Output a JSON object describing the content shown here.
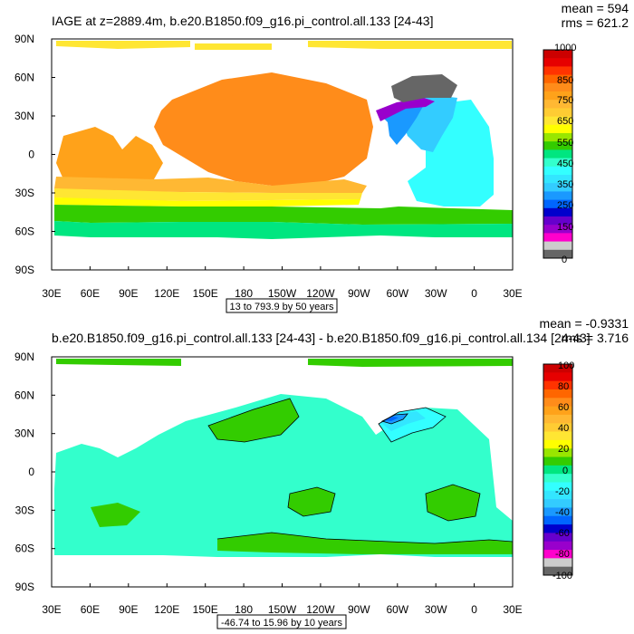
{
  "chart_data": [
    {
      "type": "heatmap",
      "title": "IAGE at z=2889.4m, b.e20.B1850.f09_g16.pi_control.all.133 [24-43]",
      "stats": {
        "mean": "mean = 594",
        "rms": "rms = 621.2"
      },
      "contour_info": "13 to 793.9 by 50 years",
      "x_ticks": [
        "30E",
        "60E",
        "90E",
        "120E",
        "150E",
        "180",
        "150W",
        "120W",
        "90W",
        "60W",
        "30W",
        "0",
        "30E"
      ],
      "y_ticks": [
        "90N",
        "60N",
        "30N",
        "0",
        "30S",
        "60S",
        "90S"
      ],
      "colorbar": {
        "labels": [
          "1000",
          "850",
          "750",
          "650",
          "550",
          "450",
          "350",
          "250",
          "150",
          "0"
        ],
        "colors": [
          "#cc0000",
          "#e60000",
          "#ff3300",
          "#ff6600",
          "#ff8c1a",
          "#ffa21a",
          "#ffb833",
          "#ffcc33",
          "#ffe633",
          "#ffff00",
          "#99e600",
          "#33cc00",
          "#00e680",
          "#33ffcc",
          "#33ffff",
          "#33e6ff",
          "#33ccff",
          "#1a99ff",
          "#0066ff",
          "#0000cc",
          "#6600cc",
          "#9900cc",
          "#ff00cc",
          "#cccccc",
          "#666666"
        ]
      },
      "regions": [
        {
          "name": "pacific-main",
          "age": 760,
          "color": "#ff8c1a"
        },
        {
          "name": "pacific-north",
          "age": 760,
          "color": "#ff8c1a"
        },
        {
          "name": "indian-ocean",
          "age": 710,
          "color": "#ffa21a"
        },
        {
          "name": "south-band-1",
          "age": 660,
          "color": "#ffb833"
        },
        {
          "name": "south-band-2",
          "age": 620,
          "color": "#ffe633"
        },
        {
          "name": "south-band-3",
          "age": 570,
          "color": "#ffff00"
        },
        {
          "name": "southern-ocean",
          "age": 520,
          "color": "#33cc00"
        },
        {
          "name": "southern-ocean-teal",
          "age": 470,
          "color": "#00e680"
        },
        {
          "name": "atlantic",
          "age": 420,
          "color": "#33ffff"
        },
        {
          "name": "atlantic-north",
          "age": 380,
          "color": "#33ccff"
        },
        {
          "name": "atlantic-nw",
          "age": 300,
          "color": "#1a99ff"
        },
        {
          "name": "labrador-sea",
          "age": 180,
          "color": "#9900cc"
        },
        {
          "name": "nordic-seas",
          "age": 50,
          "color": "#666666"
        },
        {
          "name": "arctic",
          "age": 650,
          "color": "#ffe633"
        }
      ]
    },
    {
      "type": "heatmap",
      "title": "b.e20.B1850.f09_g16.pi_control.all.133 [24-43] - b.e20.B1850.f09_g16.pi_control.all.134 [24-43]",
      "stats": {
        "mean": "mean = -0.9331",
        "rms": "rms = 3.716"
      },
      "contour_info": "-46.74 to 15.96 by 10 years",
      "x_ticks": [
        "30E",
        "60E",
        "90E",
        "120E",
        "150E",
        "180",
        "150W",
        "120W",
        "90W",
        "60W",
        "30W",
        "0",
        "30E"
      ],
      "y_ticks": [
        "90N",
        "60N",
        "30N",
        "0",
        "30S",
        "60S",
        "90S"
      ],
      "colorbar": {
        "labels": [
          "100",
          "80",
          "60",
          "40",
          "20",
          "0",
          "-20",
          "-40",
          "-60",
          "-80",
          "-100"
        ],
        "colors": [
          "#cc0000",
          "#e60000",
          "#ff3300",
          "#ff6600",
          "#ff8c1a",
          "#ffa21a",
          "#ffb833",
          "#ffcc33",
          "#ffe633",
          "#ffff00",
          "#99e600",
          "#33cc00",
          "#00e680",
          "#33ffcc",
          "#33ffff",
          "#33e6ff",
          "#33ccff",
          "#1a99ff",
          "#0066ff",
          "#0000cc",
          "#6600cc",
          "#9900cc",
          "#ff00cc",
          "#cccccc",
          "#666666"
        ]
      },
      "regions": [
        {
          "name": "ocean-background",
          "diff": -5,
          "color": "#33ffcc"
        },
        {
          "name": "pacific-north-patch",
          "diff": 5,
          "color": "#33cc00"
        },
        {
          "name": "pacific-mid-patch",
          "diff": 3,
          "color": "#33cc00"
        },
        {
          "name": "indian-patch",
          "diff": 2,
          "color": "#33cc00"
        },
        {
          "name": "southern-patch",
          "diff": 4,
          "color": "#33cc00"
        },
        {
          "name": "atlantic-patch",
          "diff": 3,
          "color": "#33cc00"
        },
        {
          "name": "arctic-patch",
          "diff": 4,
          "color": "#33cc00"
        },
        {
          "name": "gulf-stream-1",
          "diff": -15,
          "color": "#33ffff"
        },
        {
          "name": "gulf-stream-2",
          "diff": -25,
          "color": "#33e6ff"
        },
        {
          "name": "gulf-stream-3",
          "diff": -35,
          "color": "#1a99ff"
        },
        {
          "name": "gulf-stream-4",
          "diff": -45,
          "color": "#0066ff"
        }
      ]
    }
  ]
}
